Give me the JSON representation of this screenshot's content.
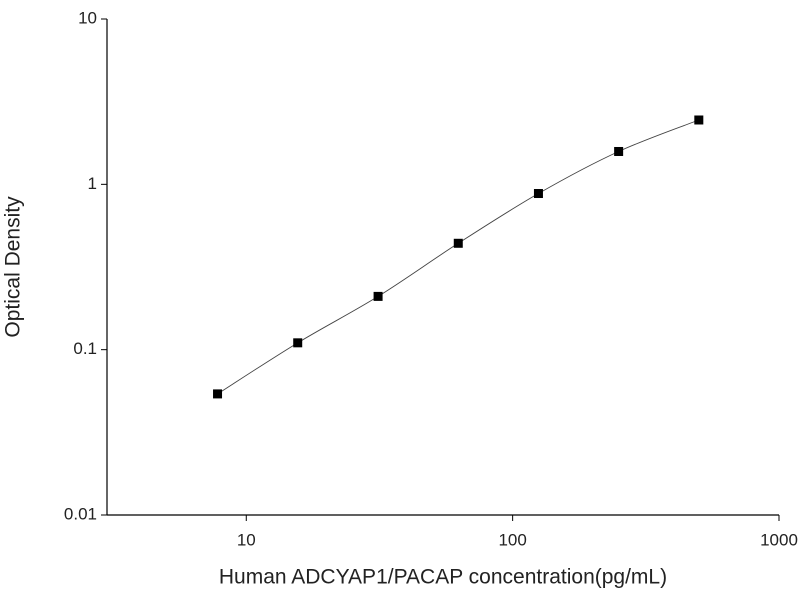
{
  "chart_data": {
    "type": "scatter",
    "x_label": "Human ADCYAP1/PACAP concentration(pg/mL)",
    "y_label": "Optical Density",
    "x_log": true,
    "y_log": true,
    "xlim": [
      3,
      1000
    ],
    "xticks": [
      10,
      100,
      1000
    ],
    "ylim": [
      0.01,
      10
    ],
    "yticks": [
      0.01,
      0.1,
      1,
      10
    ],
    "series": [
      {
        "color": "#000000",
        "x": [
          7.8,
          15.6,
          31.25,
          62.5,
          125,
          250,
          500
        ],
        "values": [
          0.054,
          0.11,
          0.21,
          0.44,
          0.88,
          1.58,
          2.45
        ]
      }
    ],
    "fit_line": true
  }
}
